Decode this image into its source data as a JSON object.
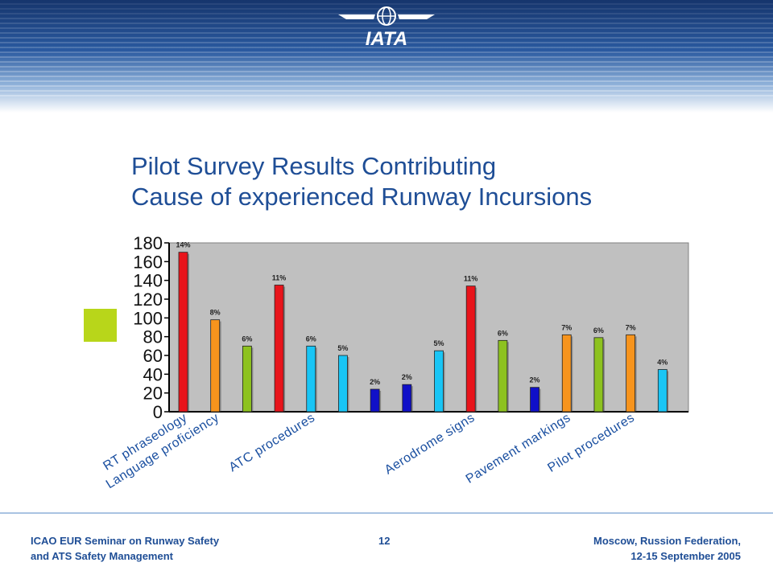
{
  "header": {
    "logo_text": "IATA"
  },
  "slide": {
    "title_line1": "Pilot Survey Results Contributing",
    "title_line2": "Cause of experienced  Runway Incursions"
  },
  "colors": {
    "title": "#1f4e96",
    "header_dark": "#1b3f7d",
    "accent_square": "#b8d61a",
    "plot_bg": "#c0c0c0"
  },
  "chart_data": {
    "type": "bar",
    "ylim": [
      0,
      180
    ],
    "yticks": [
      0,
      20,
      40,
      60,
      80,
      100,
      120,
      140,
      160,
      180
    ],
    "grid": false,
    "bars": [
      {
        "value": 170,
        "label": "14%",
        "color": "#e8141b"
      },
      {
        "value": 98,
        "label": "8%",
        "color": "#f7941d"
      },
      {
        "value": 70,
        "label": "6%",
        "color": "#8dc21f"
      },
      {
        "value": 135,
        "label": "11%",
        "color": "#e8141b"
      },
      {
        "value": 70,
        "label": "6%",
        "color": "#19c5f5"
      },
      {
        "value": 60,
        "label": "5%",
        "color": "#19c5f5"
      },
      {
        "value": 24,
        "label": "2%",
        "color": "#1010c8"
      },
      {
        "value": 29,
        "label": "2%",
        "color": "#1010c8"
      },
      {
        "value": 65,
        "label": "5%",
        "color": "#19c5f5"
      },
      {
        "value": 134,
        "label": "11%",
        "color": "#e8141b"
      },
      {
        "value": 76,
        "label": "6%",
        "color": "#8dc21f"
      },
      {
        "value": 26,
        "label": "2%",
        "color": "#1010c8"
      },
      {
        "value": 82,
        "label": "7%",
        "color": "#f7941d"
      },
      {
        "value": 79,
        "label": "6%",
        "color": "#8dc21f"
      },
      {
        "value": 82,
        "label": "7%",
        "color": "#f7941d"
      },
      {
        "value": 45,
        "label": "4%",
        "color": "#19c5f5"
      }
    ],
    "category_labels": [
      {
        "text": "RT phraseology",
        "bar": 0
      },
      {
        "text": "Language proficiency",
        "bar": 1
      },
      {
        "text": "ATC  procedures",
        "bar": 4
      },
      {
        "text": "Aerodrome  signs",
        "bar": 9
      },
      {
        "text": "Pavement markings",
        "bar": 12
      },
      {
        "text": "Pilot procedures",
        "bar": 14
      }
    ]
  },
  "footer": {
    "left_line1": "ICAO EUR Seminar on Runway Safety",
    "left_line2": "and ATS Safety Management",
    "page_number": "12",
    "right_line1": "Moscow, Russion Federation,",
    "right_line2": "12-15 September 2005"
  }
}
